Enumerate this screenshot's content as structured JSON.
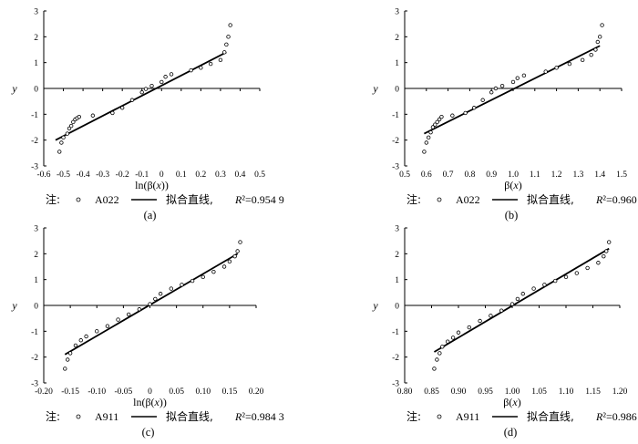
{
  "chart_data": [
    {
      "type": "scatter",
      "panel_label": "(a)",
      "xlabel": "ln(β(x))",
      "ylabel": "y",
      "xlim": [
        -0.6,
        0.5
      ],
      "ylim": [
        -3,
        3
      ],
      "x_ticks": [
        "-0.6",
        "-0.5",
        "-0.4",
        "-0.3",
        "-0.2",
        "-0.1",
        "0",
        "0.1",
        "0.2",
        "0.3",
        "0.4",
        "0.5"
      ],
      "y_ticks": [
        "3",
        "2",
        "1",
        "0",
        "-1",
        "-2",
        "-3"
      ],
      "legend": {
        "prefix": "注:",
        "points_name": "A022",
        "line_name": "拟合直线,",
        "r2_label": "R²=0.954 9"
      },
      "fit_line": {
        "x": [
          -0.54,
          0.33
        ],
        "y": [
          -2.0,
          1.4
        ]
      },
      "points": {
        "x": [
          -0.52,
          -0.51,
          -0.5,
          -0.48,
          -0.47,
          -0.46,
          -0.45,
          -0.44,
          -0.43,
          -0.42,
          -0.35,
          -0.25,
          -0.2,
          -0.15,
          -0.1,
          -0.08,
          -0.05,
          0.0,
          0.02,
          0.05,
          0.15,
          0.2,
          0.25,
          0.3,
          0.32,
          0.33,
          0.34,
          0.35
        ],
        "y": [
          -2.45,
          -2.1,
          -1.9,
          -1.75,
          -1.55,
          -1.45,
          -1.3,
          -1.2,
          -1.15,
          -1.1,
          -1.05,
          -0.95,
          -0.75,
          -0.45,
          -0.15,
          -0.02,
          0.1,
          0.25,
          0.45,
          0.55,
          0.7,
          0.8,
          0.95,
          1.1,
          1.4,
          1.7,
          2.0,
          2.45
        ]
      }
    },
    {
      "type": "scatter",
      "panel_label": "(b)",
      "xlabel": "β(x)",
      "ylabel": "y",
      "xlim": [
        0.5,
        1.5
      ],
      "ylim": [
        -3,
        3
      ],
      "x_ticks": [
        "0.5",
        "0.6",
        "0.7",
        "0.8",
        "0.9",
        "1.0",
        "1.1",
        "1.2",
        "1.3",
        "1.4",
        "1.5"
      ],
      "y_ticks": [
        "3",
        "2",
        "1",
        "0",
        "-1",
        "-2",
        "-3"
      ],
      "legend": {
        "prefix": "注:",
        "points_name": "A022",
        "line_name": "拟合直线,",
        "r2_label": "R²=0.960 9"
      },
      "fit_line": {
        "x": [
          0.59,
          1.4
        ],
        "y": [
          -1.75,
          1.65
        ]
      },
      "points": {
        "x": [
          0.59,
          0.6,
          0.61,
          0.62,
          0.63,
          0.64,
          0.65,
          0.66,
          0.67,
          0.72,
          0.78,
          0.82,
          0.86,
          0.9,
          0.92,
          0.95,
          1.0,
          1.02,
          1.05,
          1.15,
          1.2,
          1.26,
          1.32,
          1.36,
          1.38,
          1.39,
          1.4,
          1.41
        ],
        "y": [
          -2.45,
          -2.1,
          -1.9,
          -1.7,
          -1.5,
          -1.4,
          -1.3,
          -1.2,
          -1.1,
          -1.05,
          -0.95,
          -0.75,
          -0.45,
          -0.15,
          0.0,
          0.1,
          0.25,
          0.4,
          0.5,
          0.65,
          0.8,
          0.95,
          1.1,
          1.3,
          1.5,
          1.8,
          2.0,
          2.45
        ]
      }
    },
    {
      "type": "scatter",
      "panel_label": "(c)",
      "xlabel": "ln(β(x))",
      "ylabel": "y",
      "xlim": [
        -0.2,
        0.2
      ],
      "ylim": [
        -3,
        3
      ],
      "x_ticks": [
        "-0.20",
        "-0.15",
        "-0.10",
        "-0.05",
        "0",
        "0.05",
        "0.10",
        "0.15",
        "0.20"
      ],
      "y_ticks": [
        "3",
        "2",
        "1",
        "0",
        "-1",
        "-2",
        "-3"
      ],
      "legend": {
        "prefix": "注:",
        "points_name": "A911",
        "line_name": "拟合直线,",
        "r2_label": "R²=0.984 3"
      },
      "fit_line": {
        "x": [
          -0.16,
          0.165
        ],
        "y": [
          -1.9,
          2.0
        ]
      },
      "points": {
        "x": [
          -0.16,
          -0.155,
          -0.15,
          -0.14,
          -0.13,
          -0.12,
          -0.1,
          -0.08,
          -0.06,
          -0.04,
          -0.02,
          0.0,
          0.01,
          0.02,
          0.04,
          0.06,
          0.08,
          0.1,
          0.12,
          0.14,
          0.15,
          0.16,
          0.165,
          0.17
        ],
        "y": [
          -2.45,
          -2.1,
          -1.85,
          -1.55,
          -1.35,
          -1.2,
          -1.0,
          -0.8,
          -0.55,
          -0.35,
          -0.15,
          0.05,
          0.25,
          0.45,
          0.65,
          0.8,
          0.95,
          1.1,
          1.3,
          1.5,
          1.7,
          1.9,
          2.1,
          2.45
        ]
      }
    },
    {
      "type": "scatter",
      "panel_label": "(d)",
      "xlabel": "β(x)",
      "ylabel": "y",
      "xlim": [
        0.8,
        1.2
      ],
      "ylim": [
        -3,
        3
      ],
      "x_ticks": [
        "0.80",
        "0.85",
        "0.90",
        "0.95",
        "1.00",
        "1.05",
        "1.10",
        "1.15",
        "1.20"
      ],
      "y_ticks": [
        "3",
        "2",
        "1",
        "0",
        "-1",
        "-2",
        "-3"
      ],
      "legend": {
        "prefix": "注:",
        "points_name": "A911",
        "line_name": "拟合直线,",
        "r2_label": "R²=0.986 3"
      },
      "fit_line": {
        "x": [
          0.855,
          1.18
        ],
        "y": [
          -1.8,
          2.2
        ]
      },
      "points": {
        "x": [
          0.855,
          0.86,
          0.865,
          0.87,
          0.88,
          0.89,
          0.9,
          0.92,
          0.94,
          0.96,
          0.98,
          1.0,
          1.01,
          1.02,
          1.04,
          1.06,
          1.08,
          1.1,
          1.12,
          1.14,
          1.16,
          1.17,
          1.175,
          1.18
        ],
        "y": [
          -2.45,
          -2.1,
          -1.85,
          -1.6,
          -1.4,
          -1.25,
          -1.05,
          -0.85,
          -0.6,
          -0.4,
          -0.2,
          0.05,
          0.25,
          0.45,
          0.65,
          0.8,
          0.95,
          1.1,
          1.25,
          1.45,
          1.65,
          1.9,
          2.1,
          2.45
        ]
      }
    }
  ]
}
